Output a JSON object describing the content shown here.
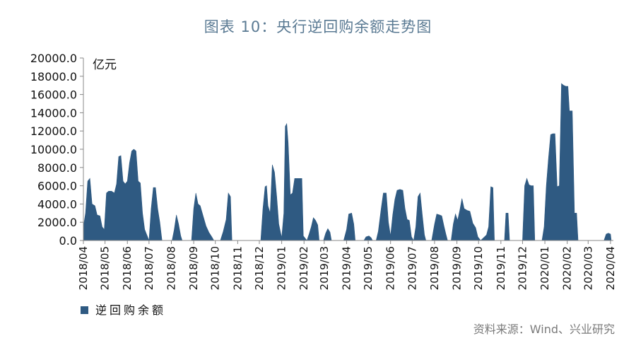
{
  "chart_data": {
    "type": "area",
    "title": "图表 10：央行逆回购余额走势图",
    "ylabel": "亿元",
    "xlabel": "",
    "ylim": [
      0,
      20000
    ],
    "yticks": [
      "0.0",
      "2000.0",
      "4000.0",
      "6000.0",
      "8000.0",
      "10000.0",
      "12000.0",
      "14000.0",
      "16000.0",
      "18000.0",
      "20000.0"
    ],
    "x_ticks": [
      "2018/04",
      "2018/05",
      "2018/06",
      "2018/07",
      "2018/08",
      "2018/09",
      "2018/10",
      "2018/11",
      "2018/12",
      "2019/01",
      "2019/02",
      "2019/03",
      "2019/04",
      "2019/05",
      "2019/06",
      "2019/07",
      "2019/08",
      "2019/09",
      "2019/10",
      "2019/11",
      "2019/12",
      "2020/01",
      "2020/02",
      "2020/03",
      "2020/04"
    ],
    "color": "#2f5a82",
    "grid": false,
    "legend_position": "bottom-left",
    "series": [
      {
        "name": "逆回购余额",
        "points": [
          [
            "2018/04/01",
            1500
          ],
          [
            "2018/04/04",
            3000
          ],
          [
            "2018/04/07",
            6500
          ],
          [
            "2018/04/10",
            6800
          ],
          [
            "2018/04/13",
            4000
          ],
          [
            "2018/04/17",
            3800
          ],
          [
            "2018/04/20",
            2800
          ],
          [
            "2018/04/24",
            2700
          ],
          [
            "2018/04/27",
            1500
          ],
          [
            "2018/04/30",
            1200
          ],
          [
            "2018/05/03",
            5200
          ],
          [
            "2018/05/06",
            5400
          ],
          [
            "2018/05/10",
            5400
          ],
          [
            "2018/05/14",
            5200
          ],
          [
            "2018/05/17",
            6200
          ],
          [
            "2018/05/20",
            9200
          ],
          [
            "2018/05/23",
            9300
          ],
          [
            "2018/05/26",
            6500
          ],
          [
            "2018/05/29",
            6200
          ],
          [
            "2018/06/01",
            6500
          ],
          [
            "2018/06/04",
            8500
          ],
          [
            "2018/06/07",
            9800
          ],
          [
            "2018/06/10",
            10000
          ],
          [
            "2018/06/13",
            9800
          ],
          [
            "2018/06/16",
            6500
          ],
          [
            "2018/06/19",
            6300
          ],
          [
            "2018/06/22",
            3000
          ],
          [
            "2018/06/25",
            1200
          ],
          [
            "2018/06/28",
            600
          ],
          [
            "2018/07/01",
            0
          ],
          [
            "2018/07/04",
            3500
          ],
          [
            "2018/07/07",
            5800
          ],
          [
            "2018/07/10",
            5800
          ],
          [
            "2018/07/13",
            3500
          ],
          [
            "2018/07/16",
            2000
          ],
          [
            "2018/07/19",
            0
          ],
          [
            "2018/08/02",
            0
          ],
          [
            "2018/08/05",
            1200
          ],
          [
            "2018/08/08",
            2800
          ],
          [
            "2018/08/11",
            1800
          ],
          [
            "2018/08/14",
            500
          ],
          [
            "2018/08/16",
            0
          ],
          [
            "2018/08/29",
            0
          ],
          [
            "2018/09/01",
            3500
          ],
          [
            "2018/09/04",
            5200
          ],
          [
            "2018/09/07",
            4000
          ],
          [
            "2018/09/10",
            3800
          ],
          [
            "2018/09/14",
            2700
          ],
          [
            "2018/09/18",
            1600
          ],
          [
            "2018/09/22",
            900
          ],
          [
            "2018/09/26",
            400
          ],
          [
            "2018/09/29",
            0
          ],
          [
            "2018/10/08",
            0
          ],
          [
            "2018/10/12",
            1000
          ],
          [
            "2018/10/16",
            2300
          ],
          [
            "2018/10/19",
            5200
          ],
          [
            "2018/10/22",
            4800
          ],
          [
            "2018/10/24",
            0
          ],
          [
            "2018/11/15",
            0
          ],
          [
            "2018/11/30",
            0
          ],
          [
            "2018/12/03",
            0
          ],
          [
            "2018/12/06",
            3500
          ],
          [
            "2018/12/09",
            5900
          ],
          [
            "2018/12/11",
            6000
          ],
          [
            "2018/12/13",
            3800
          ],
          [
            "2018/12/16",
            3000
          ],
          [
            "2018/12/19",
            8300
          ],
          [
            "2018/12/22",
            7500
          ],
          [
            "2018/12/25",
            4900
          ],
          [
            "2018/12/28",
            1800
          ],
          [
            "2019/01/01",
            300
          ],
          [
            "2019/01/04",
            3000
          ],
          [
            "2019/01/06",
            12500
          ],
          [
            "2019/01/08",
            12800
          ],
          [
            "2019/01/10",
            10700
          ],
          [
            "2019/01/13",
            5000
          ],
          [
            "2019/01/16",
            5200
          ],
          [
            "2019/01/19",
            6800
          ],
          [
            "2019/01/24",
            6800
          ],
          [
            "2019/01/29",
            6800
          ],
          [
            "2019/01/31",
            500
          ],
          [
            "2019/02/05",
            0
          ],
          [
            "2019/02/08",
            700
          ],
          [
            "2019/02/11",
            1500
          ],
          [
            "2019/02/14",
            2500
          ],
          [
            "2019/02/17",
            2200
          ],
          [
            "2019/02/20",
            1700
          ],
          [
            "2019/02/22",
            0
          ],
          [
            "2019/02/28",
            0
          ],
          [
            "2019/03/03",
            800
          ],
          [
            "2019/03/06",
            1300
          ],
          [
            "2019/03/09",
            900
          ],
          [
            "2019/03/11",
            0
          ],
          [
            "2019/03/28",
            0
          ],
          [
            "2019/04/01",
            1200
          ],
          [
            "2019/04/04",
            2900
          ],
          [
            "2019/04/08",
            3000
          ],
          [
            "2019/04/11",
            1800
          ],
          [
            "2019/04/13",
            0
          ],
          [
            "2019/04/25",
            0
          ],
          [
            "2019/04/28",
            400
          ],
          [
            "2019/05/02",
            500
          ],
          [
            "2019/05/05",
            300
          ],
          [
            "2019/05/07",
            0
          ],
          [
            "2019/05/12",
            0
          ],
          [
            "2019/05/15",
            1000
          ],
          [
            "2019/05/19",
            3500
          ],
          [
            "2019/05/22",
            5200
          ],
          [
            "2019/05/26",
            5200
          ],
          [
            "2019/05/29",
            2000
          ],
          [
            "2019/06/01",
            500
          ],
          [
            "2019/06/04",
            2800
          ],
          [
            "2019/06/07",
            4500
          ],
          [
            "2019/06/10",
            5500
          ],
          [
            "2019/06/14",
            5600
          ],
          [
            "2019/06/18",
            5500
          ],
          [
            "2019/06/21",
            3500
          ],
          [
            "2019/06/24",
            2300
          ],
          [
            "2019/06/27",
            2200
          ],
          [
            "2019/06/30",
            400
          ],
          [
            "2019/07/03",
            0
          ],
          [
            "2019/07/06",
            1500
          ],
          [
            "2019/07/09",
            4800
          ],
          [
            "2019/07/12",
            5200
          ],
          [
            "2019/07/15",
            2800
          ],
          [
            "2019/07/18",
            600
          ],
          [
            "2019/07/20",
            0
          ],
          [
            "2019/07/28",
            0
          ],
          [
            "2019/08/01",
            1800
          ],
          [
            "2019/08/04",
            2900
          ],
          [
            "2019/08/08",
            2800
          ],
          [
            "2019/08/11",
            2700
          ],
          [
            "2019/08/14",
            1600
          ],
          [
            "2019/08/17",
            600
          ],
          [
            "2019/08/19",
            0
          ],
          [
            "2019/08/24",
            0
          ],
          [
            "2019/08/27",
            1800
          ],
          [
            "2019/08/30",
            2900
          ],
          [
            "2019/09/02",
            2200
          ],
          [
            "2019/09/05",
            3300
          ],
          [
            "2019/09/08",
            4600
          ],
          [
            "2019/09/11",
            3500
          ],
          [
            "2019/09/15",
            3300
          ],
          [
            "2019/09/19",
            3200
          ],
          [
            "2019/09/23",
            1900
          ],
          [
            "2019/09/27",
            1400
          ],
          [
            "2019/09/30",
            400
          ],
          [
            "2019/10/04",
            0
          ],
          [
            "2019/10/08",
            300
          ],
          [
            "2019/10/12",
            600
          ],
          [
            "2019/10/15",
            1500
          ],
          [
            "2019/10/18",
            5900
          ],
          [
            "2019/10/21",
            5800
          ],
          [
            "2019/10/23",
            0
          ],
          [
            "2019/11/06",
            0
          ],
          [
            "2019/11/08",
            3000
          ],
          [
            "2019/11/11",
            3000
          ],
          [
            "2019/11/13",
            0
          ],
          [
            "2019/11/25",
            0
          ],
          [
            "2019/12/01",
            0
          ],
          [
            "2019/12/04",
            6000
          ],
          [
            "2019/12/07",
            6800
          ],
          [
            "2019/12/10",
            6100
          ],
          [
            "2019/12/13",
            6000
          ],
          [
            "2019/12/16",
            6000
          ],
          [
            "2019/12/18",
            0
          ],
          [
            "2019/12/28",
            0
          ],
          [
            "2019/12/31",
            1500
          ],
          [
            "2020/01/03",
            6000
          ],
          [
            "2020/01/06",
            9000
          ],
          [
            "2020/01/09",
            11600
          ],
          [
            "2020/01/12",
            11700
          ],
          [
            "2020/01/15",
            11700
          ],
          [
            "2020/01/18",
            5900
          ],
          [
            "2020/01/21",
            6000
          ],
          [
            "2020/01/24",
            17200
          ],
          [
            "2020/01/27",
            17000
          ],
          [
            "2020/01/30",
            16900
          ],
          [
            "2020/02/02",
            16900
          ],
          [
            "2020/02/04",
            14200
          ],
          [
            "2020/02/08",
            14200
          ],
          [
            "2020/02/11",
            3000
          ],
          [
            "2020/02/14",
            3000
          ],
          [
            "2020/02/16",
            0
          ],
          [
            "2020/03/01",
            0
          ],
          [
            "2020/03/23",
            0
          ],
          [
            "2020/03/26",
            700
          ],
          [
            "2020/03/29",
            800
          ],
          [
            "2020/04/01",
            700
          ],
          [
            "2020/04/02",
            0
          ]
        ]
      }
    ]
  },
  "legend": {
    "label": "逆回购余额"
  },
  "source": "资料来源：Wind、兴业研究"
}
